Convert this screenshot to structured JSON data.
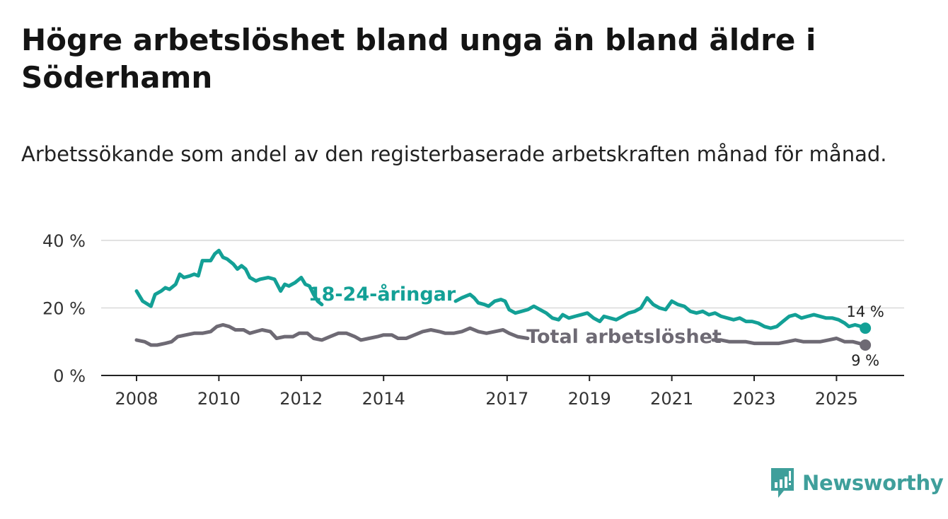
{
  "title": "Högre arbetslöshet bland unga än bland äldre i Söderhamn",
  "subtitle": "Arbetssökande som andel av den registerbaserade arbetskraften månad för månad.",
  "brand": {
    "name": "Newsworthy",
    "color": "#3f9f9b"
  },
  "chart_data": {
    "type": "line",
    "xlim": [
      2008,
      2026.7
    ],
    "ylim": [
      0,
      40
    ],
    "yticks": [
      {
        "value": 0,
        "label": "0 %"
      },
      {
        "value": 20,
        "label": "20 %"
      },
      {
        "value": 40,
        "label": "40 %"
      }
    ],
    "xticks": [
      {
        "value": 2008,
        "label": "2008"
      },
      {
        "value": 2010,
        "label": "2010"
      },
      {
        "value": 2012,
        "label": "2012"
      },
      {
        "value": 2014,
        "label": "2014"
      },
      {
        "value": 2017,
        "label": "2017"
      },
      {
        "value": 2019,
        "label": "2019"
      },
      {
        "value": 2021,
        "label": "2021"
      },
      {
        "value": 2023,
        "label": "2023"
      },
      {
        "value": 2025,
        "label": "2025"
      }
    ],
    "series": [
      {
        "name": "18-24-åringar",
        "color": "#13a096",
        "end_label": "14 %",
        "points": [
          [
            2008.0,
            25
          ],
          [
            2008.15,
            22
          ],
          [
            2008.35,
            20.5
          ],
          [
            2008.45,
            24
          ],
          [
            2008.6,
            25
          ],
          [
            2008.7,
            26
          ],
          [
            2008.8,
            25.5
          ],
          [
            2008.95,
            27
          ],
          [
            2009.05,
            30
          ],
          [
            2009.15,
            29
          ],
          [
            2009.3,
            29.5
          ],
          [
            2009.4,
            30
          ],
          [
            2009.5,
            29.5
          ],
          [
            2009.6,
            34
          ],
          [
            2009.8,
            34
          ],
          [
            2009.9,
            36
          ],
          [
            2010.0,
            37
          ],
          [
            2010.1,
            35
          ],
          [
            2010.2,
            34.5
          ],
          [
            2010.35,
            33
          ],
          [
            2010.45,
            31.5
          ],
          [
            2010.55,
            32.5
          ],
          [
            2010.65,
            31.5
          ],
          [
            2010.75,
            29
          ],
          [
            2010.9,
            28
          ],
          [
            2011.0,
            28.5
          ],
          [
            2011.2,
            29
          ],
          [
            2011.35,
            28.5
          ],
          [
            2011.5,
            25
          ],
          [
            2011.6,
            27
          ],
          [
            2011.7,
            26.5
          ],
          [
            2011.85,
            27.5
          ],
          [
            2012.0,
            29
          ],
          [
            2012.1,
            27
          ],
          [
            2012.2,
            26.5
          ],
          [
            2012.3,
            24
          ],
          [
            2012.4,
            22
          ],
          [
            2012.5,
            21
          ],
          [
            2015.75,
            22
          ],
          [
            2015.9,
            23
          ],
          [
            2016.0,
            23.5
          ],
          [
            2016.1,
            24
          ],
          [
            2016.2,
            23
          ],
          [
            2016.3,
            21.5
          ],
          [
            2016.45,
            21
          ],
          [
            2016.55,
            20.5
          ],
          [
            2016.7,
            22
          ],
          [
            2016.85,
            22.5
          ],
          [
            2016.95,
            22
          ],
          [
            2017.05,
            19.5
          ],
          [
            2017.2,
            18.5
          ],
          [
            2017.35,
            19
          ],
          [
            2017.5,
            19.5
          ],
          [
            2017.65,
            20.5
          ],
          [
            2017.8,
            19.5
          ],
          [
            2017.95,
            18.5
          ],
          [
            2018.1,
            17
          ],
          [
            2018.25,
            16.5
          ],
          [
            2018.35,
            18
          ],
          [
            2018.5,
            17
          ],
          [
            2018.65,
            17.5
          ],
          [
            2018.8,
            18
          ],
          [
            2018.95,
            18.5
          ],
          [
            2019.1,
            17
          ],
          [
            2019.25,
            16
          ],
          [
            2019.35,
            17.5
          ],
          [
            2019.5,
            17
          ],
          [
            2019.65,
            16.5
          ],
          [
            2019.8,
            17.5
          ],
          [
            2019.95,
            18.5
          ],
          [
            2020.1,
            19
          ],
          [
            2020.25,
            20
          ],
          [
            2020.4,
            23
          ],
          [
            2020.55,
            21
          ],
          [
            2020.7,
            20
          ],
          [
            2020.85,
            19.5
          ],
          [
            2021.0,
            22
          ],
          [
            2021.15,
            21
          ],
          [
            2021.3,
            20.5
          ],
          [
            2021.45,
            19
          ],
          [
            2021.6,
            18.5
          ],
          [
            2021.75,
            19
          ],
          [
            2021.9,
            18
          ],
          [
            2022.05,
            18.5
          ],
          [
            2022.2,
            17.5
          ],
          [
            2022.35,
            17
          ],
          [
            2022.5,
            16.5
          ],
          [
            2022.65,
            17
          ],
          [
            2022.8,
            16
          ],
          [
            2022.95,
            16
          ],
          [
            2023.1,
            15.5
          ],
          [
            2023.25,
            14.5
          ],
          [
            2023.4,
            14
          ],
          [
            2023.55,
            14.5
          ],
          [
            2023.7,
            16
          ],
          [
            2023.85,
            17.5
          ],
          [
            2024.0,
            18
          ],
          [
            2024.15,
            17
          ],
          [
            2024.3,
            17.5
          ],
          [
            2024.45,
            18
          ],
          [
            2024.6,
            17.5
          ],
          [
            2024.75,
            17
          ],
          [
            2024.9,
            17
          ],
          [
            2025.05,
            16.5
          ],
          [
            2025.2,
            15.5
          ],
          [
            2025.3,
            14.5
          ],
          [
            2025.45,
            15
          ],
          [
            2025.6,
            14.5
          ],
          [
            2025.7,
            14
          ]
        ]
      },
      {
        "name": "Total arbetslöshet",
        "color": "#6e6a74",
        "end_label": "9 %",
        "points": [
          [
            2008.0,
            10.5
          ],
          [
            2008.2,
            10
          ],
          [
            2008.35,
            9
          ],
          [
            2008.5,
            9
          ],
          [
            2008.7,
            9.5
          ],
          [
            2008.85,
            10
          ],
          [
            2009.0,
            11.5
          ],
          [
            2009.2,
            12
          ],
          [
            2009.4,
            12.5
          ],
          [
            2009.6,
            12.5
          ],
          [
            2009.8,
            13
          ],
          [
            2009.95,
            14.5
          ],
          [
            2010.1,
            15
          ],
          [
            2010.25,
            14.5
          ],
          [
            2010.4,
            13.5
          ],
          [
            2010.6,
            13.5
          ],
          [
            2010.75,
            12.5
          ],
          [
            2010.9,
            13
          ],
          [
            2011.05,
            13.5
          ],
          [
            2011.25,
            13
          ],
          [
            2011.4,
            11
          ],
          [
            2011.6,
            11.5
          ],
          [
            2011.8,
            11.5
          ],
          [
            2011.95,
            12.5
          ],
          [
            2012.15,
            12.5
          ],
          [
            2012.3,
            11
          ],
          [
            2012.5,
            10.5
          ],
          [
            2012.7,
            11.5
          ],
          [
            2012.9,
            12.5
          ],
          [
            2013.1,
            12.5
          ],
          [
            2013.3,
            11.5
          ],
          [
            2013.45,
            10.5
          ],
          [
            2013.65,
            11
          ],
          [
            2013.85,
            11.5
          ],
          [
            2014.0,
            12
          ],
          [
            2014.2,
            12
          ],
          [
            2014.35,
            11
          ],
          [
            2014.55,
            11
          ],
          [
            2014.75,
            12
          ],
          [
            2014.95,
            13
          ],
          [
            2015.15,
            13.5
          ],
          [
            2015.35,
            13
          ],
          [
            2015.5,
            12.5
          ],
          [
            2015.7,
            12.5
          ],
          [
            2015.9,
            13
          ],
          [
            2016.1,
            14
          ],
          [
            2016.3,
            13
          ],
          [
            2016.5,
            12.5
          ],
          [
            2016.7,
            13
          ],
          [
            2016.9,
            13.5
          ],
          [
            2017.05,
            12.5
          ],
          [
            2017.25,
            11.5
          ],
          [
            2017.5,
            11
          ],
          [
            2022.0,
            10.5
          ],
          [
            2022.2,
            10.5
          ],
          [
            2022.4,
            10
          ],
          [
            2022.6,
            10
          ],
          [
            2022.8,
            10
          ],
          [
            2023.0,
            9.5
          ],
          [
            2023.2,
            9.5
          ],
          [
            2023.4,
            9.5
          ],
          [
            2023.6,
            9.5
          ],
          [
            2023.8,
            10
          ],
          [
            2024.0,
            10.5
          ],
          [
            2024.2,
            10
          ],
          [
            2024.4,
            10
          ],
          [
            2024.6,
            10
          ],
          [
            2024.8,
            10.5
          ],
          [
            2025.0,
            11
          ],
          [
            2025.2,
            10
          ],
          [
            2025.4,
            10
          ],
          [
            2025.55,
            9.5
          ],
          [
            2025.7,
            9
          ]
        ]
      }
    ]
  }
}
